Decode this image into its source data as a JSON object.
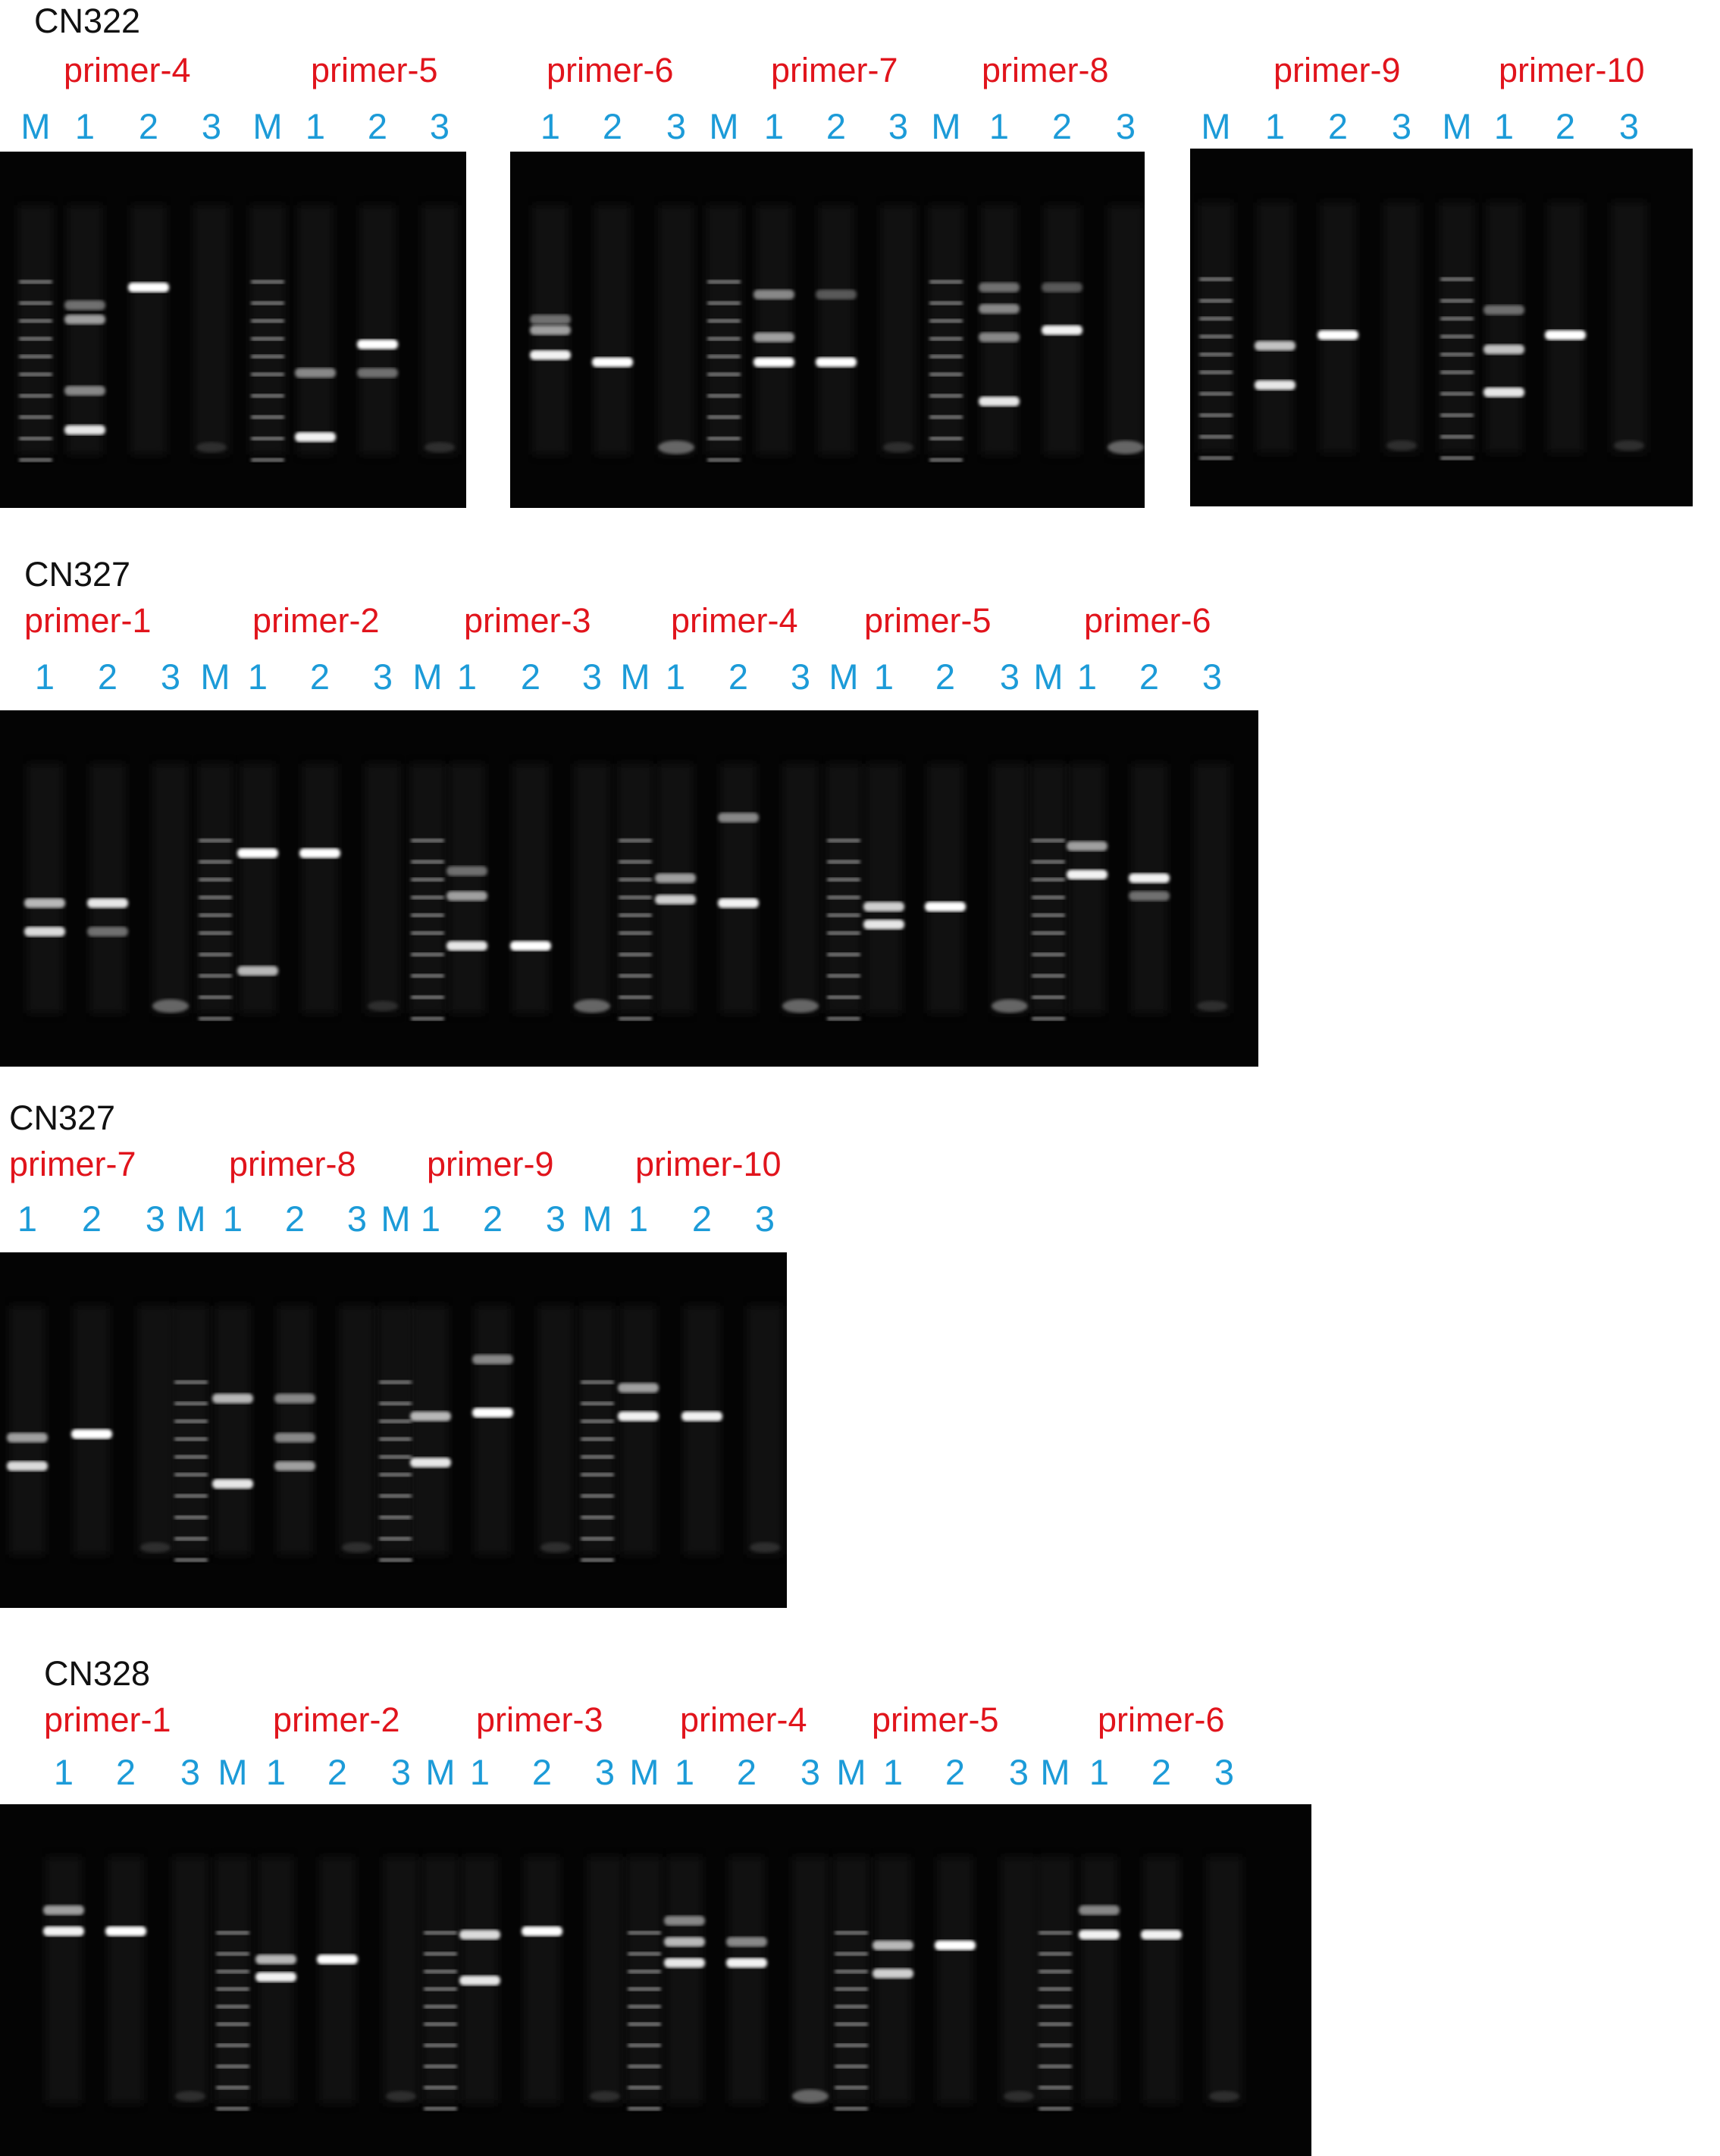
{
  "sections": [
    {
      "id": "cn322",
      "title": "CN322",
      "title_pos_hint": "top-left",
      "gels": [
        {
          "id": "gel-1",
          "primers": [
            {
              "label": "primer-4",
              "lanes": [
                "M",
                "1",
                "2",
                "3"
              ]
            },
            {
              "label": "primer-5",
              "lanes": [
                "M",
                "1",
                "2",
                "3"
              ]
            }
          ]
        },
        {
          "id": "gel-2",
          "primers": [
            {
              "label": "primer-6",
              "lanes": [
                "1",
                "2",
                "3"
              ]
            },
            {
              "label": "primer-7",
              "lanes": [
                "M",
                "1",
                "2",
                "3"
              ]
            },
            {
              "label": "primer-8",
              "lanes": [
                "M",
                "1",
                "2",
                "3"
              ]
            }
          ]
        },
        {
          "id": "gel-3",
          "primers": [
            {
              "label": "primer-9",
              "lanes": [
                "M",
                "1",
                "2",
                "3"
              ]
            },
            {
              "label": "primer-10",
              "lanes": [
                "M",
                "1",
                "2",
                "3"
              ]
            }
          ]
        }
      ]
    },
    {
      "id": "cn327-a",
      "title": "CN327",
      "gels": [
        {
          "id": "gel-4",
          "primers": [
            {
              "label": "primer-1",
              "lanes": [
                "1",
                "2",
                "3"
              ]
            },
            {
              "label": "primer-2",
              "lanes": [
                "M",
                "1",
                "2",
                "3"
              ]
            },
            {
              "label": "primer-3",
              "lanes": [
                "M",
                "1",
                "2",
                "3"
              ]
            },
            {
              "label": "primer-4",
              "lanes": [
                "M",
                "1",
                "2",
                "3"
              ]
            },
            {
              "label": "primer-5",
              "lanes": [
                "M",
                "1",
                "2",
                "3"
              ]
            },
            {
              "label": "primer-6",
              "lanes": [
                "M",
                "1",
                "2",
                "3"
              ]
            }
          ]
        }
      ]
    },
    {
      "id": "cn327-b",
      "title": "CN327",
      "gels": [
        {
          "id": "gel-5",
          "primers": [
            {
              "label": "primer-7",
              "lanes": [
                "1",
                "2",
                "3"
              ]
            },
            {
              "label": "primer-8",
              "lanes": [
                "M",
                "1",
                "2",
                "3"
              ]
            },
            {
              "label": "primer-9",
              "lanes": [
                "M",
                "1",
                "2",
                "3"
              ]
            },
            {
              "label": "primer-10",
              "lanes": [
                "M",
                "1",
                "2",
                "3"
              ]
            }
          ]
        }
      ]
    },
    {
      "id": "cn328",
      "title": "CN328",
      "gels": [
        {
          "id": "gel-6",
          "primers": [
            {
              "label": "primer-1",
              "lanes": [
                "1",
                "2",
                "3"
              ]
            },
            {
              "label": "primer-2",
              "lanes": [
                "M",
                "1",
                "2",
                "3"
              ]
            },
            {
              "label": "primer-3",
              "lanes": [
                "M",
                "1",
                "2",
                "3"
              ]
            },
            {
              "label": "primer-4",
              "lanes": [
                "M",
                "1",
                "2",
                "3"
              ]
            },
            {
              "label": "primer-5",
              "lanes": [
                "M",
                "1",
                "2",
                "3"
              ]
            },
            {
              "label": "primer-6",
              "lanes": [
                "M",
                "1",
                "2",
                "3"
              ]
            }
          ]
        }
      ]
    }
  ],
  "colors": {
    "title": "#111111",
    "primer_label": "#e1141c",
    "lane_label": "#1c9bd8",
    "gel_background": "#040404",
    "band": "#ffffff"
  }
}
